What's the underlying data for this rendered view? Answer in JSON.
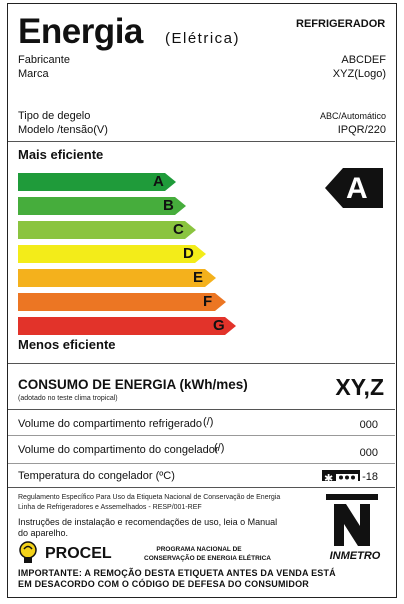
{
  "header": {
    "title": "Energia",
    "subtitle": "(Elétrica)",
    "product": "REFRIGERADOR"
  },
  "manufacturer": {
    "fabricante_label": "Fabricante",
    "fabricante_value": "ABCDEF",
    "marca_label": "Marca",
    "marca_value": "XYZ(Logo)"
  },
  "specs": {
    "degelo_label": "Tipo de degelo",
    "degelo_value": "ABC/Automático",
    "modelo_label": "Modelo /tensão(V)",
    "modelo_value": "IPQR/220"
  },
  "scale": {
    "top_label": "Mais eficiente",
    "bottom_label": "Menos eficiente",
    "classes": [
      {
        "letter": "A",
        "color": "#1f9b3a"
      },
      {
        "letter": "B",
        "color": "#46ad3c"
      },
      {
        "letter": "C",
        "color": "#8ac43f"
      },
      {
        "letter": "D",
        "color": "#f3ec19"
      },
      {
        "letter": "E",
        "color": "#f4b11c"
      },
      {
        "letter": "F",
        "color": "#ec7623"
      },
      {
        "letter": "G",
        "color": "#e2332a"
      }
    ],
    "rating": "A"
  },
  "consumption": {
    "label": "CONSUMO DE ENERGIA (kWh/mes)",
    "note": "(adotado no teste clima tropical)",
    "value": "XY,Z"
  },
  "rows": [
    {
      "label": "Volume do compartimento refrigerado",
      "unit": "(/)",
      "value": "000"
    },
    {
      "label": "Volume do compartimento do congelador",
      "unit": "(/)",
      "value": "000"
    },
    {
      "label": "Temperatura do congelador (ºC)",
      "unit": "",
      "value": "-18"
    }
  ],
  "regulation": {
    "line1": "Regulamento Específico Para Uso da Etiqueta Nacional de Conservação de Energia",
    "line2": "Linha de Refrigeradores e Assemelhados - RESP/001-REF",
    "instructions1": "Instruções de instalação e recomendações de uso, leia o Manual",
    "instructions2": "do aparelho."
  },
  "procel": {
    "name": "PROCEL",
    "program1": "PROGRAMA NACIONAL DE",
    "program2": "CONSERVAÇÃO DE ENERGIA ELÉTRICA"
  },
  "inmetro": {
    "name": "INMETRO"
  },
  "footer": {
    "line1": "IMPORTANTE: A REMOÇÃO DESTA ETIQUETA ANTES DA VENDA ESTÁ",
    "line2": "EM DESACORDO COM O CÓDIGO DE DEFESA DO CONSUMIDOR"
  }
}
